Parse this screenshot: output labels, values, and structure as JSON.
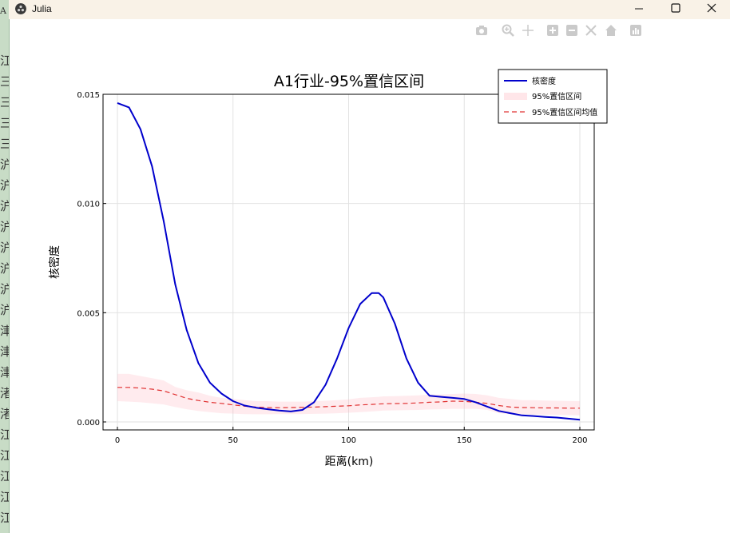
{
  "window": {
    "title": "Julia",
    "controls": [
      "minimize",
      "maximize",
      "close"
    ]
  },
  "background_strip": {
    "top_char": "A",
    "chars": [
      "江",
      "三",
      "三",
      "三",
      "三",
      "沪",
      "沪",
      "沪",
      "沪",
      "沪",
      "沪",
      "沪",
      "沪",
      "津",
      "津",
      "津",
      "渚",
      "渚",
      "江",
      "江",
      "江",
      "江",
      "江"
    ]
  },
  "toolbar": {
    "icons": [
      "camera-icon",
      "zoom-icon",
      "pan-icon",
      "zoom-in-icon",
      "zoom-out-icon",
      "autoscale-icon",
      "home-icon",
      "plotly-icon"
    ]
  },
  "chart_data": {
    "type": "line",
    "title": "A1行业-95%置信区间",
    "xlabel": "距离(km)",
    "ylabel": "核密度",
    "xlim": [
      0,
      200
    ],
    "ylim": [
      0,
      0.015
    ],
    "xticks": [
      0,
      50,
      100,
      150,
      200
    ],
    "xtick_labels": [
      "0",
      "50",
      "100",
      "150",
      "200"
    ],
    "yticks": [
      0,
      0.005,
      0.01,
      0.015
    ],
    "ytick_labels": [
      "0.000",
      "0.005",
      "0.010",
      "0.015"
    ],
    "grid": true,
    "legend_position": "top-right",
    "x": [
      0,
      5,
      10,
      15,
      20,
      25,
      30,
      35,
      40,
      45,
      50,
      55,
      60,
      65,
      70,
      75,
      80,
      85,
      90,
      95,
      100,
      105,
      110,
      113,
      115,
      120,
      125,
      130,
      135,
      140,
      145,
      150,
      155,
      160,
      165,
      170,
      175,
      180,
      185,
      190,
      195,
      200
    ],
    "series": [
      {
        "name": "核密度",
        "style": "solid",
        "color": "#0000cc",
        "values": [
          0.0146,
          0.0144,
          0.0134,
          0.0117,
          0.0092,
          0.0063,
          0.0042,
          0.0027,
          0.0018,
          0.0013,
          0.00095,
          0.00075,
          0.00065,
          0.00058,
          0.00052,
          0.00048,
          0.00055,
          0.0009,
          0.0017,
          0.0029,
          0.0043,
          0.0054,
          0.0059,
          0.0059,
          0.0057,
          0.0045,
          0.0029,
          0.0018,
          0.0012,
          0.00115,
          0.0011,
          0.00105,
          0.0009,
          0.0007,
          0.0005,
          0.0004,
          0.0003,
          0.00027,
          0.00023,
          0.0002,
          0.00015,
          0.0001
        ]
      },
      {
        "name": "95%置信区间",
        "style": "band",
        "color": "#ffb6c1",
        "lower": [
          0.00095,
          0.00093,
          0.0009,
          0.00085,
          0.0008,
          0.00068,
          0.00058,
          0.0005,
          0.00045,
          0.0004,
          0.00038,
          0.00036,
          0.00035,
          0.00035,
          0.00036,
          0.00036,
          0.00036,
          0.00037,
          0.00038,
          0.0004,
          0.00042,
          0.00045,
          0.00048,
          0.0005,
          0.00052,
          0.00053,
          0.00054,
          0.00055,
          0.00057,
          0.00058,
          0.0006,
          0.0006,
          0.0006,
          0.00055,
          0.0004,
          0.00036,
          0.00035,
          0.00034,
          0.00033,
          0.00032,
          0.00031,
          0.0003
        ],
        "upper": [
          0.0022,
          0.0022,
          0.0021,
          0.002,
          0.0019,
          0.0016,
          0.00145,
          0.00135,
          0.0012,
          0.0011,
          0.00105,
          0.001,
          0.00095,
          0.00095,
          0.00093,
          0.00093,
          0.00093,
          0.00095,
          0.00097,
          0.001,
          0.00103,
          0.0011,
          0.00113,
          0.00115,
          0.00117,
          0.00118,
          0.0012,
          0.00122,
          0.00125,
          0.00126,
          0.00128,
          0.0013,
          0.00128,
          0.00122,
          0.0011,
          0.00105,
          0.001,
          0.001,
          0.00098,
          0.00097,
          0.00096,
          0.00095
        ]
      },
      {
        "name": "95%置信区间均值",
        "style": "dashed",
        "color": "#e03030",
        "values": [
          0.00158,
          0.00158,
          0.00155,
          0.0015,
          0.00142,
          0.00125,
          0.00108,
          0.00098,
          0.0009,
          0.00085,
          0.00078,
          0.00072,
          0.00068,
          0.00066,
          0.00065,
          0.00066,
          0.00067,
          0.00068,
          0.0007,
          0.00072,
          0.00074,
          0.00078,
          0.0008,
          0.00082,
          0.00083,
          0.00084,
          0.00085,
          0.00087,
          0.0009,
          0.00092,
          0.00095,
          0.00094,
          0.0009,
          0.00085,
          0.00075,
          0.00068,
          0.00066,
          0.00065,
          0.00064,
          0.00064,
          0.00063,
          0.00063
        ]
      }
    ]
  }
}
